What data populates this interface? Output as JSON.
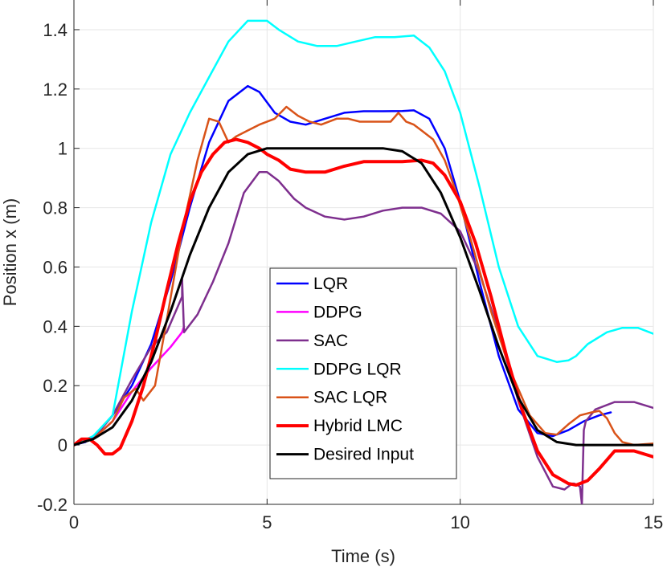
{
  "chart_data": {
    "type": "line",
    "title": "",
    "xlabel": "Time (s)",
    "ylabel": "Position x (m)",
    "xlim": [
      0,
      15
    ],
    "ylim": [
      -0.2,
      1.5
    ],
    "xticks": [
      0,
      5,
      10,
      15
    ],
    "xtick_labels": [
      "0",
      "5",
      "10",
      "15"
    ],
    "yticks": [
      -0.2,
      0,
      0.2,
      0.4,
      0.6,
      0.8,
      1,
      1.2,
      1.4
    ],
    "ytick_labels": [
      "-0.2",
      "0",
      "0.2",
      "0.4",
      "0.6",
      "0.8",
      "1",
      "1.2",
      "1.4"
    ],
    "grid": true,
    "legend_position": "center",
    "series": [
      {
        "name": "LQR",
        "color": "#0000ff",
        "x": [
          0,
          0.3,
          0.6,
          1.0,
          1.5,
          2.0,
          2.5,
          3.0,
          3.5,
          4.0,
          4.5,
          4.8,
          5.2,
          5.6,
          6.0,
          6.5,
          7.0,
          7.5,
          8.0,
          8.5,
          8.8,
          9.2,
          9.6,
          10.0,
          10.5,
          11.0,
          11.5,
          12.0,
          12.4,
          12.8,
          13.2,
          13.6,
          13.9
        ],
        "y": [
          0.0,
          0.01,
          0.04,
          0.1,
          0.2,
          0.34,
          0.55,
          0.8,
          1.02,
          1.16,
          1.21,
          1.19,
          1.12,
          1.09,
          1.08,
          1.1,
          1.12,
          1.125,
          1.125,
          1.126,
          1.128,
          1.1,
          1.0,
          0.82,
          0.55,
          0.3,
          0.12,
          0.04,
          0.03,
          0.05,
          0.08,
          0.1,
          0.11
        ]
      },
      {
        "name": "DDPG",
        "color": "#ff00ff",
        "x": [
          0,
          0.5,
          1.0,
          1.5,
          2.0,
          2.5,
          2.8,
          2.85
        ],
        "y": [
          0.0,
          0.02,
          0.08,
          0.18,
          0.26,
          0.33,
          0.38,
          0.4
        ]
      },
      {
        "name": "SAC",
        "color": "#7e2f8e",
        "x": [
          0,
          0.5,
          1.0,
          1.5,
          2.0,
          2.4,
          2.8,
          2.8,
          2.85,
          3.2,
          3.6,
          4.0,
          4.4,
          4.8,
          5.0,
          5.3,
          5.7,
          6.0,
          6.5,
          7.0,
          7.5,
          8.0,
          8.5,
          9.0,
          9.5,
          10.0,
          10.5,
          11.0,
          11.5,
          12.0,
          12.4,
          12.7,
          12.9,
          12.95,
          13.1,
          13.15,
          13.2,
          13.25,
          13.5,
          14.0,
          14.5,
          15.0
        ],
        "y": [
          0.0,
          0.02,
          0.1,
          0.22,
          0.33,
          0.38,
          0.5,
          0.56,
          0.38,
          0.44,
          0.55,
          0.68,
          0.85,
          0.92,
          0.92,
          0.89,
          0.83,
          0.8,
          0.77,
          0.76,
          0.77,
          0.79,
          0.8,
          0.8,
          0.78,
          0.72,
          0.58,
          0.38,
          0.15,
          -0.04,
          -0.14,
          -0.15,
          -0.13,
          -0.13,
          -0.14,
          -0.2,
          0.05,
          0.08,
          0.12,
          0.145,
          0.145,
          0.125
        ]
      },
      {
        "name": "DDPG LQR",
        "color": "#00ffff",
        "x": [
          0,
          0.5,
          1.0,
          1.5,
          2.0,
          2.5,
          3.0,
          3.5,
          4.0,
          4.5,
          5.0,
          5.3,
          5.8,
          6.3,
          6.8,
          7.3,
          7.8,
          8.3,
          8.8,
          9.2,
          9.6,
          10.0,
          10.5,
          11.0,
          11.5,
          12.0,
          12.5,
          12.8,
          13.0,
          13.3,
          13.8,
          14.2,
          14.6,
          15.0
        ],
        "y": [
          0.0,
          0.03,
          0.1,
          0.45,
          0.75,
          0.98,
          1.12,
          1.24,
          1.36,
          1.43,
          1.43,
          1.4,
          1.36,
          1.345,
          1.345,
          1.36,
          1.375,
          1.375,
          1.38,
          1.34,
          1.26,
          1.12,
          0.87,
          0.6,
          0.4,
          0.3,
          0.28,
          0.285,
          0.3,
          0.34,
          0.38,
          0.395,
          0.395,
          0.375
        ]
      },
      {
        "name": "SAC LQR",
        "color": "#d95319",
        "x": [
          0,
          0.5,
          1.0,
          1.3,
          1.6,
          1.8,
          2.1,
          2.4,
          2.8,
          3.2,
          3.5,
          3.75,
          4.0,
          4.2,
          4.5,
          4.8,
          5.2,
          5.5,
          5.8,
          6.1,
          6.4,
          6.8,
          7.1,
          7.4,
          7.8,
          8.2,
          8.4,
          8.6,
          8.8,
          9.0,
          9.3,
          9.6,
          9.9,
          10.3,
          10.8,
          11.3,
          11.8,
          12.2,
          12.5,
          12.8,
          13.1,
          13.4,
          13.6,
          13.8,
          14.0,
          14.2,
          14.5,
          15.0
        ],
        "y": [
          0.0,
          0.02,
          0.08,
          0.16,
          0.19,
          0.15,
          0.2,
          0.42,
          0.72,
          0.96,
          1.1,
          1.09,
          1.02,
          1.04,
          1.06,
          1.08,
          1.1,
          1.14,
          1.11,
          1.09,
          1.08,
          1.1,
          1.1,
          1.09,
          1.09,
          1.09,
          1.12,
          1.09,
          1.08,
          1.06,
          1.03,
          0.96,
          0.85,
          0.68,
          0.45,
          0.25,
          0.1,
          0.04,
          0.035,
          0.07,
          0.1,
          0.11,
          0.115,
          0.09,
          0.04,
          0.01,
          0.0,
          0.005
        ]
      },
      {
        "name": "Hybrid LMC",
        "color": "#ff0000",
        "x": [
          0,
          0.2,
          0.4,
          0.6,
          0.8,
          1.0,
          1.2,
          1.5,
          1.8,
          2.1,
          2.4,
          2.7,
          3.0,
          3.3,
          3.6,
          3.9,
          4.2,
          4.5,
          4.8,
          5.0,
          5.3,
          5.6,
          6.0,
          6.5,
          7.0,
          7.5,
          8.0,
          8.5,
          9.0,
          9.3,
          9.6,
          10.0,
          10.4,
          10.8,
          11.2,
          11.6,
          12.0,
          12.4,
          12.8,
          13.0,
          13.3,
          13.6,
          14.0,
          14.5,
          15.0
        ],
        "y": [
          0.0,
          0.02,
          0.02,
          0.0,
          -0.03,
          -0.03,
          -0.01,
          0.08,
          0.2,
          0.35,
          0.52,
          0.68,
          0.82,
          0.92,
          0.98,
          1.02,
          1.03,
          1.02,
          1.0,
          0.98,
          0.96,
          0.93,
          0.92,
          0.92,
          0.94,
          0.955,
          0.955,
          0.955,
          0.96,
          0.95,
          0.91,
          0.82,
          0.68,
          0.5,
          0.3,
          0.12,
          -0.02,
          -0.1,
          -0.13,
          -0.135,
          -0.12,
          -0.08,
          -0.02,
          -0.02,
          -0.04
        ]
      },
      {
        "name": "Desired Input",
        "color": "#000000",
        "x": [
          0,
          0.5,
          1.0,
          1.5,
          2.0,
          2.5,
          3.0,
          3.5,
          4.0,
          4.5,
          5.0,
          5.5,
          6.0,
          7.0,
          8.0,
          8.5,
          9.0,
          9.5,
          10.0,
          10.5,
          11.0,
          11.5,
          12.0,
          12.5,
          13.0,
          14.0,
          15.0
        ],
        "y": [
          0.0,
          0.02,
          0.06,
          0.15,
          0.28,
          0.45,
          0.64,
          0.8,
          0.92,
          0.98,
          1.0,
          1.0,
          1.0,
          1.0,
          1.0,
          0.99,
          0.95,
          0.85,
          0.7,
          0.52,
          0.33,
          0.16,
          0.05,
          0.01,
          0.0,
          0.0,
          0.0
        ]
      }
    ]
  }
}
